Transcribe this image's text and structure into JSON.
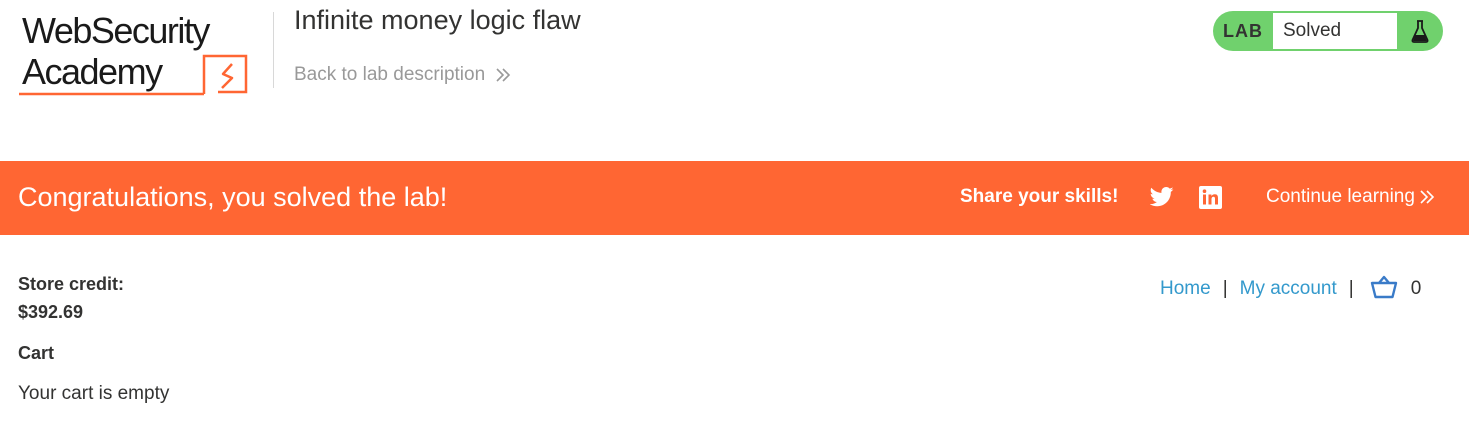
{
  "header": {
    "logo": {
      "line1": "WebSecurity",
      "line2": "Academy",
      "icon": "portswigger-lightning-icon"
    },
    "lab_title": "Infinite money logic flaw",
    "back_link": "Back to lab description",
    "status": {
      "tag": "LAB",
      "text": "Solved",
      "icon": "flask-icon",
      "color": "#70d16d"
    }
  },
  "banner": {
    "message": "Congratulations, you solved the lab!",
    "share_label": "Share your skills!",
    "share_icons": [
      "twitter-icon",
      "linkedin-icon"
    ],
    "continue_label": "Continue learning",
    "color": "#ff6633"
  },
  "account": {
    "credit_label": "Store credit:",
    "credit_value": "$392.69"
  },
  "cart": {
    "heading": "Cart",
    "empty_message": "Your cart is empty",
    "count": "0"
  },
  "nav": {
    "home": "Home",
    "separator": "|",
    "my_account": "My account",
    "link_color": "#3399cc"
  }
}
